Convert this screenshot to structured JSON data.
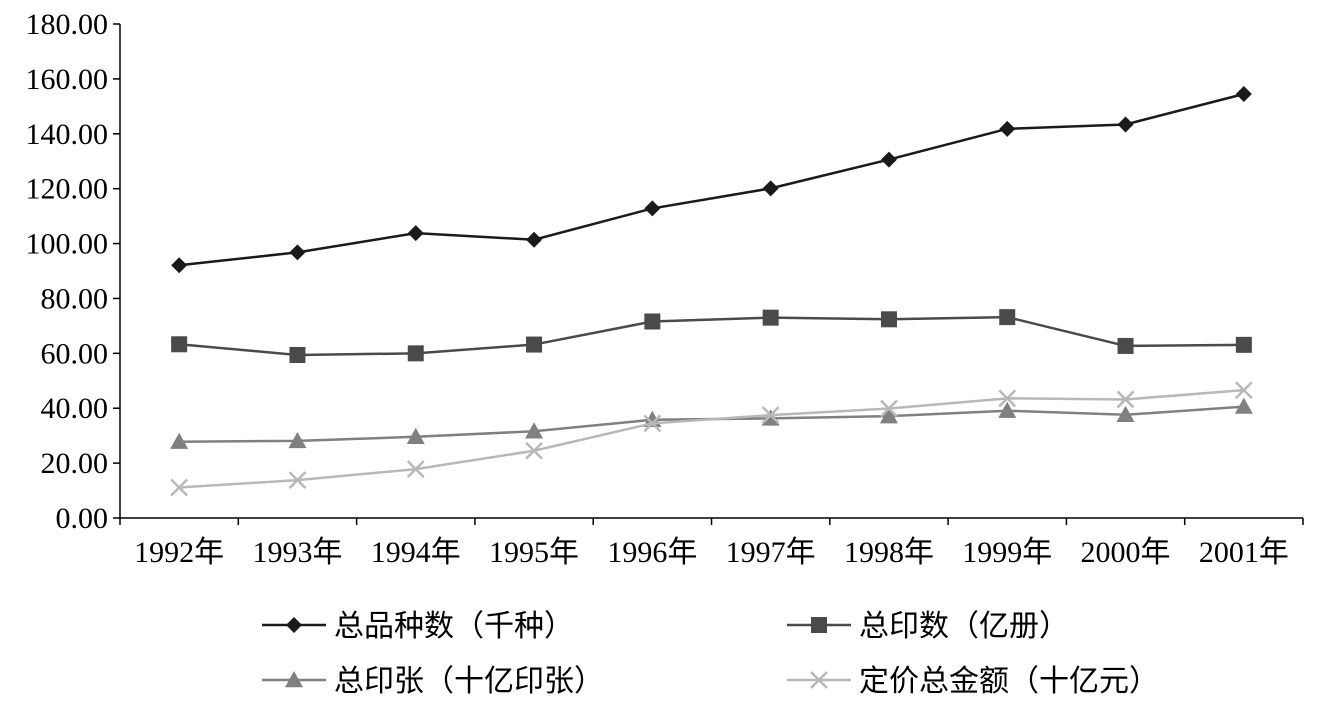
{
  "chart_data": {
    "type": "line",
    "title": "",
    "xlabel": "",
    "ylabel": "",
    "categories": [
      "1992年",
      "1993年",
      "1994年",
      "1995年",
      "1996年",
      "1997年",
      "1998年",
      "1999年",
      "2000年",
      "2001年"
    ],
    "ylim": [
      0,
      180
    ],
    "yticks": [
      "0.00",
      "20.00",
      "40.00",
      "60.00",
      "80.00",
      "100.00",
      "120.00",
      "140.00",
      "160.00",
      "180.00"
    ],
    "grid": false,
    "legend_position": "bottom",
    "series": [
      {
        "name": "总品种数（千种）",
        "marker": "diamond",
        "color": "#1a1a1a",
        "values": [
          92.1,
          96.8,
          103.8,
          101.4,
          112.8,
          120.1,
          130.6,
          141.8,
          143.4,
          154.5
        ]
      },
      {
        "name": "总印数（亿册）",
        "marker": "square",
        "color": "#4a4a4a",
        "values": [
          63.3,
          59.4,
          60.0,
          63.2,
          71.6,
          73.0,
          72.4,
          73.2,
          62.7,
          63.1
        ]
      },
      {
        "name": "总印张（十亿印张）",
        "marker": "triangle",
        "color": "#808080",
        "values": [
          27.8,
          28.1,
          29.6,
          31.6,
          35.8,
          36.3,
          37.1,
          39.1,
          37.6,
          40.6
        ]
      },
      {
        "name": "定价总金额（十亿元）",
        "marker": "x",
        "color": "#b8b8b8",
        "values": [
          11.1,
          13.8,
          17.8,
          24.5,
          34.5,
          37.5,
          39.9,
          43.6,
          43.2,
          46.6
        ]
      }
    ]
  }
}
